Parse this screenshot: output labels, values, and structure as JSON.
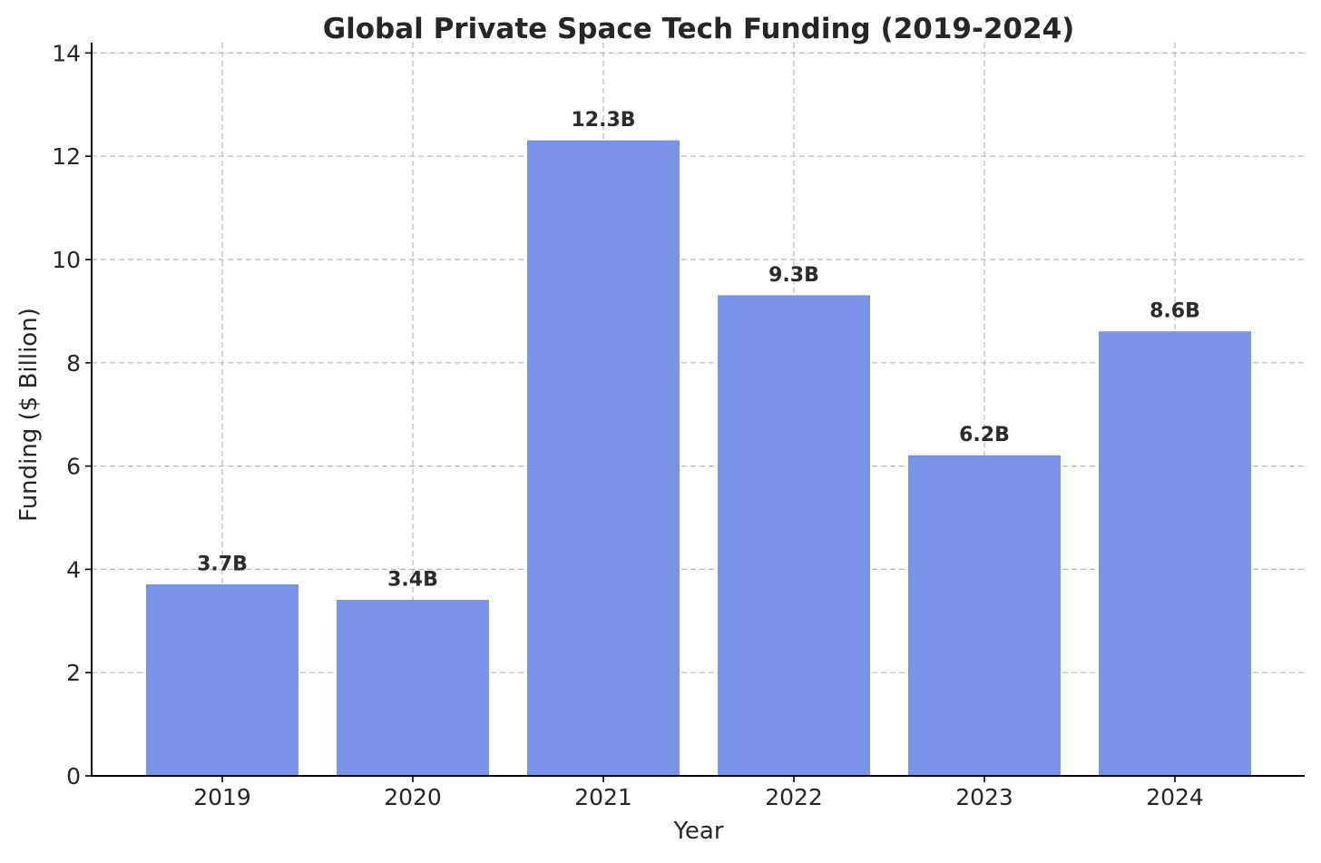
{
  "chart_data": {
    "type": "bar",
    "title": "Global Private Space Tech Funding (2019-2024)",
    "xlabel": "Year",
    "ylabel": "Funding ($ Billion)",
    "categories": [
      "2019",
      "2020",
      "2021",
      "2022",
      "2023",
      "2024"
    ],
    "values": [
      3.7,
      3.4,
      12.3,
      9.3,
      6.2,
      8.6
    ],
    "data_labels": [
      "3.7B",
      "3.4B",
      "12.3B",
      "9.3B",
      "6.2B",
      "8.6B"
    ],
    "ylim": [
      0,
      14.2
    ],
    "yticks": [
      0,
      2,
      4,
      6,
      8,
      10,
      12,
      14
    ],
    "ytick_labels": [
      "0",
      "2",
      "4",
      "6",
      "8",
      "10",
      "12",
      "14"
    ],
    "grid": true,
    "bar_color": "#7994e8",
    "bar_edge_color": "#6a85dd"
  }
}
